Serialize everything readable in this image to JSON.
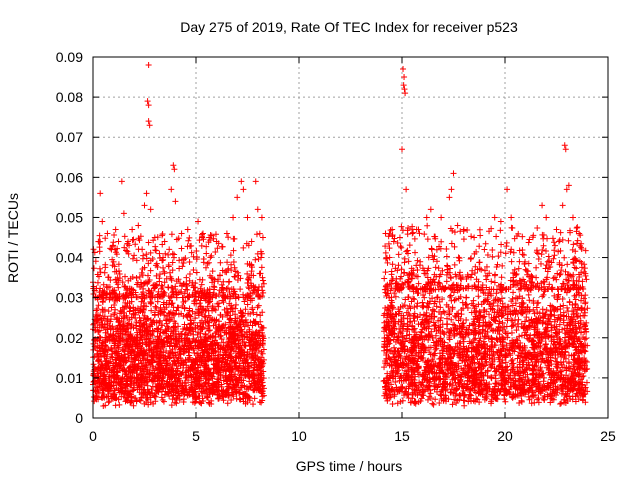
{
  "chart_data": {
    "type": "scatter",
    "title": "Day 275 of 2019, Rate Of TEC Index for receiver p523",
    "xlabel": "GPS time / hours",
    "ylabel": "ROTI / TECUs",
    "xlim": [
      0,
      25
    ],
    "ylim": [
      0,
      0.09
    ],
    "xticks": [
      {
        "value": 0,
        "label": "0"
      },
      {
        "value": 5,
        "label": "5"
      },
      {
        "value": 10,
        "label": "10"
      },
      {
        "value": 15,
        "label": "15"
      },
      {
        "value": 20,
        "label": "20"
      },
      {
        "value": 25,
        "label": "25"
      }
    ],
    "yticks": [
      {
        "value": 0,
        "label": "0"
      },
      {
        "value": 0.01,
        "label": "0.01"
      },
      {
        "value": 0.02,
        "label": "0.02"
      },
      {
        "value": 0.03,
        "label": "0.03"
      },
      {
        "value": 0.04,
        "label": "0.04"
      },
      {
        "value": 0.05,
        "label": "0.05"
      },
      {
        "value": 0.06,
        "label": "0.06"
      },
      {
        "value": 0.07,
        "label": "0.07"
      },
      {
        "value": 0.08,
        "label": "0.08"
      },
      {
        "value": 0.09,
        "label": "0.09"
      }
    ],
    "grid": true,
    "marker": "+",
    "series_color": "#ff0000",
    "data_segments": [
      {
        "x_start": 0.0,
        "x_end": 8.3
      },
      {
        "x_start": 14.1,
        "x_end": 24.0
      }
    ],
    "points": [
      [
        0.3,
        0.044
      ],
      [
        0.35,
        0.056
      ],
      [
        0.45,
        0.049
      ],
      [
        0.7,
        0.046
      ],
      [
        0.9,
        0.042
      ],
      [
        1.1,
        0.047
      ],
      [
        1.4,
        0.059
      ],
      [
        1.5,
        0.051
      ],
      [
        1.7,
        0.044
      ],
      [
        1.9,
        0.047
      ],
      [
        2.2,
        0.048
      ],
      [
        2.5,
        0.053
      ],
      [
        2.6,
        0.056
      ],
      [
        2.7,
        0.088
      ],
      [
        2.65,
        0.079
      ],
      [
        2.7,
        0.078
      ],
      [
        2.7,
        0.074
      ],
      [
        2.75,
        0.073
      ],
      [
        2.8,
        0.052
      ],
      [
        3.0,
        0.045
      ],
      [
        3.4,
        0.04
      ],
      [
        3.8,
        0.057
      ],
      [
        3.9,
        0.063
      ],
      [
        3.95,
        0.062
      ],
      [
        4.0,
        0.054
      ],
      [
        4.3,
        0.046
      ],
      [
        4.6,
        0.047
      ],
      [
        5.1,
        0.049
      ],
      [
        5.3,
        0.045
      ],
      [
        5.5,
        0.041
      ],
      [
        6.0,
        0.044
      ],
      [
        6.5,
        0.046
      ],
      [
        6.8,
        0.05
      ],
      [
        7.0,
        0.055
      ],
      [
        7.2,
        0.059
      ],
      [
        7.3,
        0.057
      ],
      [
        7.5,
        0.05
      ],
      [
        7.7,
        0.044
      ],
      [
        7.9,
        0.059
      ],
      [
        8.0,
        0.052
      ],
      [
        8.2,
        0.05
      ],
      [
        8.25,
        0.045
      ],
      [
        0.5,
        0.003
      ],
      [
        1.0,
        0.006
      ],
      [
        2.0,
        0.005
      ],
      [
        4.4,
        0.004
      ],
      [
        5.8,
        0.006
      ],
      [
        7.4,
        0.006
      ],
      [
        8.1,
        0.004
      ],
      [
        14.2,
        0.046
      ],
      [
        14.4,
        0.04
      ],
      [
        14.6,
        0.044
      ],
      [
        14.9,
        0.045
      ],
      [
        15.05,
        0.087
      ],
      [
        15.1,
        0.085
      ],
      [
        15.08,
        0.083
      ],
      [
        15.12,
        0.082
      ],
      [
        15.15,
        0.081
      ],
      [
        15.0,
        0.067
      ],
      [
        15.2,
        0.057
      ],
      [
        15.5,
        0.046
      ],
      [
        15.8,
        0.047
      ],
      [
        16.2,
        0.05
      ],
      [
        16.4,
        0.052
      ],
      [
        16.9,
        0.05
      ],
      [
        17.3,
        0.055
      ],
      [
        17.5,
        0.061
      ],
      [
        17.4,
        0.057
      ],
      [
        17.7,
        0.048
      ],
      [
        18.0,
        0.047
      ],
      [
        18.5,
        0.045
      ],
      [
        19.0,
        0.042
      ],
      [
        19.5,
        0.05
      ],
      [
        19.8,
        0.049
      ],
      [
        20.1,
        0.057
      ],
      [
        20.3,
        0.05
      ],
      [
        20.7,
        0.039
      ],
      [
        21.0,
        0.037
      ],
      [
        21.6,
        0.041
      ],
      [
        21.8,
        0.053
      ],
      [
        22.0,
        0.05
      ],
      [
        22.5,
        0.047
      ],
      [
        22.8,
        0.053
      ],
      [
        22.9,
        0.068
      ],
      [
        22.95,
        0.067
      ],
      [
        23.0,
        0.057
      ],
      [
        23.1,
        0.058
      ],
      [
        23.3,
        0.05
      ],
      [
        23.6,
        0.046
      ],
      [
        23.9,
        0.036
      ],
      [
        14.3,
        0.005
      ],
      [
        15.2,
        0.006
      ],
      [
        16.0,
        0.007
      ],
      [
        18.2,
        0.007
      ],
      [
        20.4,
        0.006
      ],
      [
        22.2,
        0.006
      ],
      [
        23.8,
        0.007
      ]
    ],
    "cloud_bounds": [
      {
        "x_start": 0.0,
        "x_end": 8.3,
        "y_min": 0.005,
        "y_max": 0.034
      },
      {
        "x_start": 14.1,
        "x_end": 24.0,
        "y_min": 0.005,
        "y_max": 0.036
      }
    ]
  }
}
